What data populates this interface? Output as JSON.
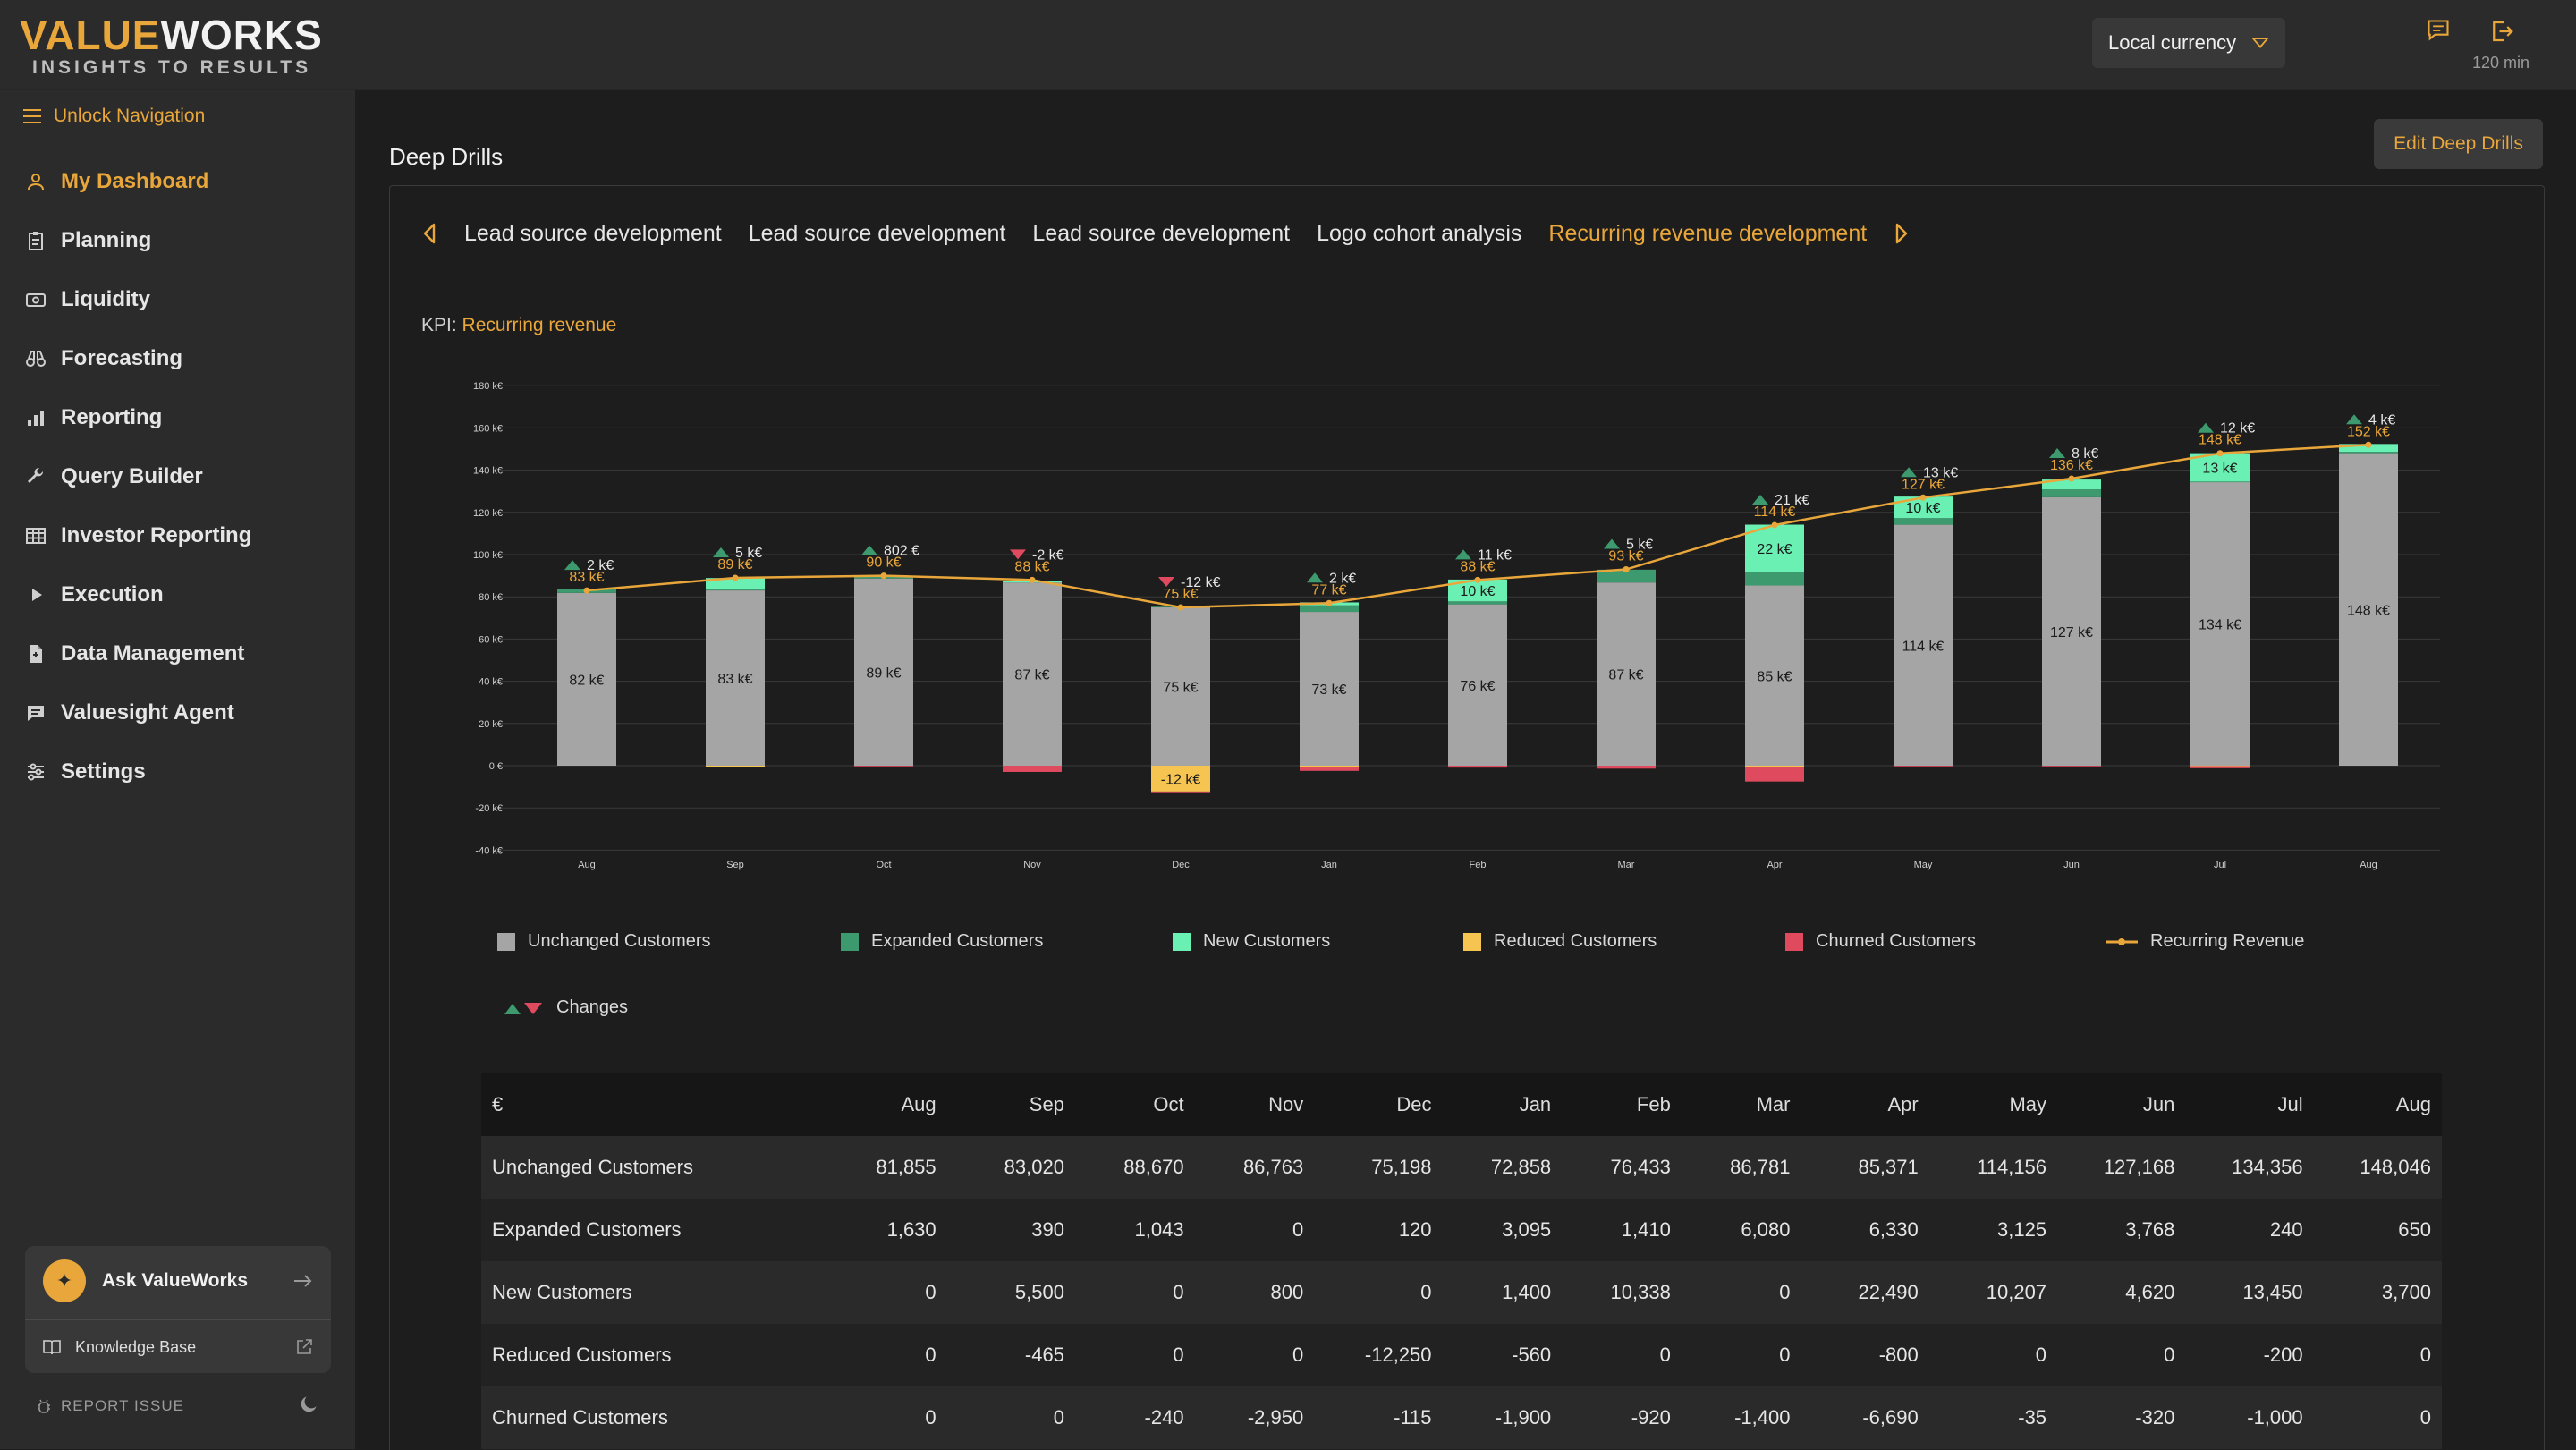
{
  "brand": {
    "logo_a": "VALUE",
    "logo_b": "WORKS",
    "tagline": "INSIGHTS TO RESULTS"
  },
  "header": {
    "currency_label": "Local currency",
    "timer": "120 min"
  },
  "sidebar": {
    "unlock": "Unlock Navigation",
    "items": [
      {
        "label": "My Dashboard",
        "icon": "user-icon"
      },
      {
        "label": "Planning",
        "icon": "clipboard-icon"
      },
      {
        "label": "Liquidity",
        "icon": "cash-icon"
      },
      {
        "label": "Forecasting",
        "icon": "binoculars-icon"
      },
      {
        "label": "Reporting",
        "icon": "bar-chart-icon"
      },
      {
        "label": "Query Builder",
        "icon": "wrench-icon"
      },
      {
        "label": "Investor Reporting",
        "icon": "table-icon"
      },
      {
        "label": "Execution",
        "icon": "play-icon"
      },
      {
        "label": "Data Management",
        "icon": "file-icon"
      },
      {
        "label": "Valuesight Agent",
        "icon": "chat-icon"
      },
      {
        "label": "Settings",
        "icon": "sliders-icon"
      }
    ],
    "ask_label": "Ask ValueWorks",
    "kb_label": "Knowledge Base",
    "report_label": "REPORT ISSUE"
  },
  "main": {
    "title": "Deep Drills",
    "edit_button": "Edit Deep Drills",
    "tabs": [
      "Lead source development",
      "Lead source development",
      "Lead source development",
      "Logo cohort analysis",
      "Recurring revenue development"
    ],
    "active_tab": 4,
    "kpi_label": "KPI:",
    "kpi_value": "Recurring revenue"
  },
  "colors": {
    "accent": "#e9a63a",
    "unchanged": "#a5a5a5",
    "expanded": "#3d9a6e",
    "new": "#6bf0b4",
    "reduced": "#f5c451",
    "churned": "#e04a5e",
    "line": "#e9a63a"
  },
  "chart_data": {
    "type": "bar",
    "categories": [
      "Aug",
      "Sep",
      "Oct",
      "Nov",
      "Dec",
      "Jan",
      "Feb",
      "Mar",
      "Apr",
      "May",
      "Jun",
      "Jul",
      "Aug"
    ],
    "ylim": [
      -40,
      180
    ],
    "yticks": [
      "180 k€",
      "160 k€",
      "140 k€",
      "120 k€",
      "100 k€",
      "80 k€",
      "60 k€",
      "40 k€",
      "20 k€",
      "0 €",
      "-20 k€",
      "-40 k€"
    ],
    "series": [
      {
        "name": "Unchanged Customers",
        "values": [
          81.855,
          83.02,
          88.67,
          86.763,
          75.198,
          72.858,
          76.433,
          86.781,
          85.371,
          114.156,
          127.168,
          134.356,
          148.046
        ]
      },
      {
        "name": "Expanded Customers",
        "values": [
          1.63,
          0.39,
          1.043,
          0,
          0.12,
          3.095,
          1.41,
          6.08,
          6.33,
          3.125,
          3.768,
          0.24,
          0.65
        ]
      },
      {
        "name": "New Customers",
        "values": [
          0,
          5.5,
          0,
          0.8,
          0,
          1.4,
          10.338,
          0,
          22.49,
          10.207,
          4.62,
          13.45,
          3.7
        ]
      },
      {
        "name": "Reduced Customers",
        "values": [
          0,
          -0.465,
          0,
          0,
          -12.25,
          -0.56,
          0,
          0,
          -0.8,
          0,
          0,
          -0.2,
          0
        ]
      },
      {
        "name": "Churned Customers",
        "values": [
          0,
          0,
          -0.24,
          -2.95,
          -0.115,
          -1.9,
          -0.92,
          -1.4,
          -6.69,
          -0.035,
          -0.32,
          -1.0,
          0
        ]
      },
      {
        "name": "Recurring Revenue",
        "values": [
          83,
          89,
          90,
          88,
          75,
          77,
          88,
          93,
          114,
          127,
          136,
          148,
          152
        ]
      }
    ],
    "bar_labels": [
      "82 k€",
      "83 k€",
      "89 k€",
      "87 k€",
      "75 k€",
      "73 k€",
      "76 k€",
      "87 k€",
      "85 k€",
      "114 k€",
      "127 k€",
      "134 k€",
      "148 k€"
    ],
    "line_labels": [
      "83 k€",
      "89 k€",
      "90 k€",
      "88 k€",
      "75 k€",
      "77 k€",
      "88 k€",
      "93 k€",
      "114 k€",
      "127 k€",
      "136 k€",
      "148 k€",
      "152 k€"
    ],
    "changes": [
      {
        "dir": "up",
        "label": "2 k€"
      },
      {
        "dir": "up",
        "label": "5 k€"
      },
      {
        "dir": "up",
        "label": "802 €"
      },
      {
        "dir": "down",
        "label": "-2 k€"
      },
      {
        "dir": "down",
        "label": "-12 k€"
      },
      {
        "dir": "up",
        "label": "2 k€"
      },
      {
        "dir": "up",
        "label": "11 k€"
      },
      {
        "dir": "up",
        "label": "5 k€"
      },
      {
        "dir": "up",
        "label": "21 k€"
      },
      {
        "dir": "up",
        "label": "13 k€"
      },
      {
        "dir": "up",
        "label": "8 k€"
      },
      {
        "dir": "up",
        "label": "12 k€"
      },
      {
        "dir": "up",
        "label": "4 k€"
      }
    ],
    "segment_labels": [
      {
        "col": 4,
        "series": "Reduced Customers",
        "label": "-12 k€"
      },
      {
        "col": 6,
        "series": "New Customers",
        "label": "10 k€"
      },
      {
        "col": 8,
        "series": "New Customers",
        "label": "22 k€"
      },
      {
        "col": 9,
        "series": "New Customers",
        "label": "10 k€"
      },
      {
        "col": 11,
        "series": "New Customers",
        "label": "13 k€"
      }
    ],
    "legend": [
      "Unchanged Customers",
      "Expanded Customers",
      "New Customers",
      "Reduced Customers",
      "Churned Customers",
      "Recurring Revenue",
      "Changes"
    ]
  },
  "table": {
    "header": [
      "€",
      "Aug",
      "Sep",
      "Oct",
      "Nov",
      "Dec",
      "Jan",
      "Feb",
      "Mar",
      "Apr",
      "May",
      "Jun",
      "Jul",
      "Aug"
    ],
    "rows": [
      [
        "Unchanged Customers",
        "81,855",
        "83,020",
        "88,670",
        "86,763",
        "75,198",
        "72,858",
        "76,433",
        "86,781",
        "85,371",
        "114,156",
        "127,168",
        "134,356",
        "148,046"
      ],
      [
        "Expanded Customers",
        "1,630",
        "390",
        "1,043",
        "0",
        "120",
        "3,095",
        "1,410",
        "6,080",
        "6,330",
        "3,125",
        "3,768",
        "240",
        "650"
      ],
      [
        "New Customers",
        "0",
        "5,500",
        "0",
        "800",
        "0",
        "1,400",
        "10,338",
        "0",
        "22,490",
        "10,207",
        "4,620",
        "13,450",
        "3,700"
      ],
      [
        "Reduced Customers",
        "0",
        "-465",
        "0",
        "0",
        "-12,250",
        "-560",
        "0",
        "0",
        "-800",
        "0",
        "0",
        "-200",
        "0"
      ],
      [
        "Churned Customers",
        "0",
        "0",
        "-240",
        "-2,950",
        "-115",
        "-1,900",
        "-920",
        "-1,400",
        "-6,690",
        "-35",
        "-320",
        "-1,000",
        "0"
      ]
    ]
  }
}
